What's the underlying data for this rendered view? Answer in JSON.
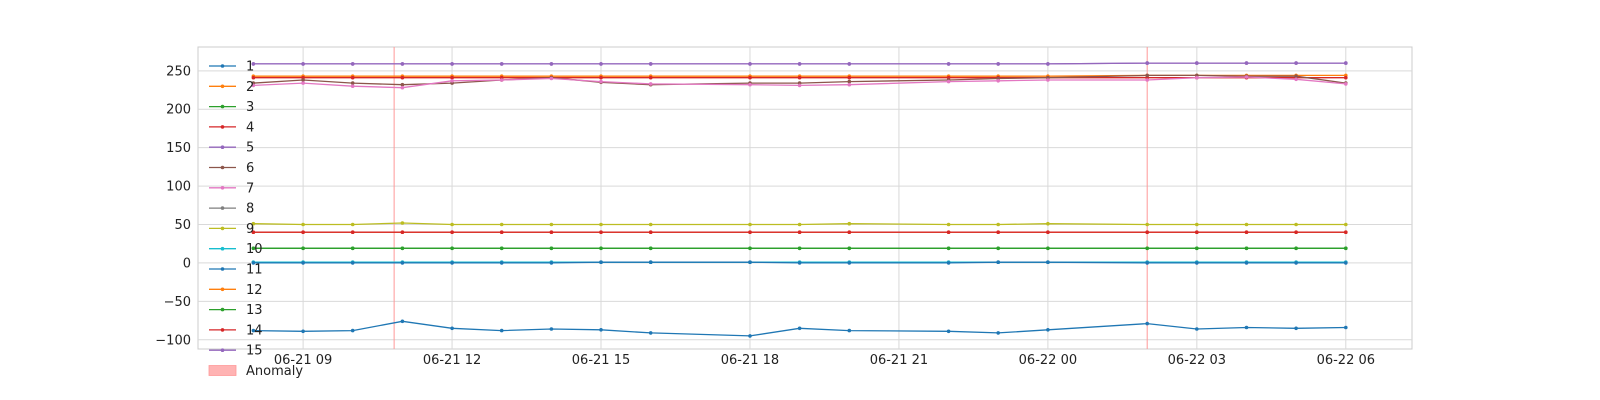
{
  "chart_data": {
    "type": "line",
    "title": "",
    "xlabel": "",
    "ylabel": "",
    "grid": true,
    "legend_placement": "left, inside plot",
    "ylim": [
      -112,
      281
    ],
    "yticks": [
      250,
      200,
      150,
      100,
      50,
      0,
      -50,
      -100
    ],
    "ytick_labels": [
      "250",
      "200",
      "150",
      "100",
      "50",
      "0",
      "−50",
      "−100"
    ],
    "xlim": [
      "2021-06-21 06:53",
      "2021-06-22 07:20"
    ],
    "xticks": [
      "2021-06-21 09:00",
      "2021-06-21 12:00",
      "2021-06-21 15:00",
      "2021-06-21 18:00",
      "2021-06-21 21:00",
      "2021-06-22 00:00",
      "2021-06-22 03:00",
      "2021-06-22 06:00"
    ],
    "xtick_labels": [
      "06-21 09",
      "06-21 12",
      "06-21 15",
      "06-21 18",
      "06-21 21",
      "06-22 00",
      "06-22 03",
      "06-22 06"
    ],
    "x": [
      "2021-06-21 08:00",
      "2021-06-21 09:00",
      "2021-06-21 10:00",
      "2021-06-21 11:00",
      "2021-06-21 12:00",
      "2021-06-21 13:00",
      "2021-06-21 14:00",
      "2021-06-21 15:00",
      "2021-06-21 16:00",
      "2021-06-21 18:00",
      "2021-06-21 19:00",
      "2021-06-21 20:00",
      "2021-06-21 22:00",
      "2021-06-21 23:00",
      "2021-06-22 00:00",
      "2021-06-22 02:00",
      "2021-06-22 03:00",
      "2021-06-22 04:00",
      "2021-06-22 05:00",
      "2021-06-22 06:00"
    ],
    "anomalies": [
      "2021-06-21 10:50",
      "2021-06-22 02:00"
    ],
    "anomaly_label": "Anomaly",
    "anomaly_color": "#ffb3b3",
    "series": [
      {
        "name": "1",
        "color": "#1f77b4",
        "values": [
          -88,
          -89,
          -88,
          -76,
          -85,
          -88,
          -86,
          -87,
          -91,
          -95,
          -85,
          -88,
          -89,
          -91,
          -87,
          -79,
          -86,
          -84,
          -85,
          -84
        ]
      },
      {
        "name": "2",
        "color": "#ff7f0e",
        "values": [
          243,
          243,
          243,
          243,
          243,
          243,
          243,
          243,
          243,
          243,
          243,
          243,
          243,
          243,
          243,
          244,
          244,
          244,
          244,
          244
        ]
      },
      {
        "name": "3",
        "color": "#2ca02c",
        "values": [
          19,
          19,
          19,
          19,
          19,
          19,
          19,
          19,
          19,
          19,
          19,
          19,
          19,
          19,
          19,
          19,
          19,
          19,
          19,
          19
        ]
      },
      {
        "name": "4",
        "color": "#d62728",
        "values": [
          241,
          241,
          241,
          241,
          241,
          241,
          241,
          241,
          241,
          241,
          241,
          241,
          241,
          241,
          241,
          241,
          241,
          241,
          241,
          241
        ]
      },
      {
        "name": "5",
        "color": "#9467bd",
        "values": [
          259,
          259,
          259,
          259,
          259,
          259,
          259,
          259,
          259,
          259,
          259,
          259,
          259,
          259,
          259,
          260,
          260,
          260,
          260,
          260
        ]
      },
      {
        "name": "6",
        "color": "#8c564b",
        "values": [
          234,
          238,
          234,
          232,
          234,
          238,
          241,
          235,
          232,
          234,
          234,
          236,
          238,
          240,
          241,
          244,
          244,
          243,
          243,
          234
        ]
      },
      {
        "name": "7",
        "color": "#e377c2",
        "values": [
          231,
          234,
          230,
          228,
          237,
          238,
          240,
          236,
          233,
          232,
          231,
          232,
          236,
          237,
          238,
          238,
          241,
          242,
          239,
          233
        ]
      },
      {
        "name": "8",
        "color": "#7f7f7f",
        "values": [
          1,
          1,
          1,
          1,
          1,
          1,
          1,
          1,
          1,
          1,
          1,
          1,
          1,
          1,
          1,
          1,
          1,
          1,
          1,
          1
        ]
      },
      {
        "name": "9",
        "color": "#bcbd22",
        "values": [
          51,
          50,
          50,
          52,
          50,
          50,
          50,
          50,
          50,
          50,
          50,
          51,
          50,
          50,
          51,
          50,
          50,
          50,
          50,
          50
        ]
      },
      {
        "name": "10",
        "color": "#17becf",
        "values": [
          1,
          1,
          1,
          1,
          1,
          1,
          1,
          1,
          1,
          1,
          1,
          1,
          1,
          1,
          1,
          1,
          1,
          1,
          1,
          1
        ]
      },
      {
        "name": "11",
        "color": "#1f77b4",
        "values": [
          0,
          0,
          0,
          0,
          0,
          0,
          0,
          1,
          1,
          1,
          0,
          0,
          0,
          1,
          1,
          0,
          0,
          0,
          0,
          0
        ]
      },
      {
        "name": "12",
        "color": "#ff7f0e",
        "values": [
          40,
          40,
          40,
          40,
          40,
          40,
          40,
          40,
          40,
          40,
          40,
          40,
          40,
          40,
          40,
          40,
          40,
          40,
          40,
          40
        ]
      },
      {
        "name": "13",
        "color": "#2ca02c",
        "values": [
          19,
          19,
          19,
          19,
          19,
          19,
          19,
          19,
          19,
          19,
          19,
          19,
          19,
          19,
          19,
          19,
          19,
          19,
          19,
          19
        ]
      },
      {
        "name": "14",
        "color": "#d62728",
        "values": [
          40,
          40,
          40,
          40,
          40,
          40,
          40,
          40,
          40,
          40,
          40,
          40,
          40,
          40,
          40,
          40,
          40,
          40,
          40,
          40
        ]
      },
      {
        "name": "15",
        "color": "#9467bd",
        "values": [
          259,
          259,
          259,
          259,
          259,
          259,
          259,
          259,
          259,
          259,
          259,
          259,
          259,
          259,
          259,
          260,
          260,
          260,
          260,
          260
        ]
      }
    ]
  }
}
